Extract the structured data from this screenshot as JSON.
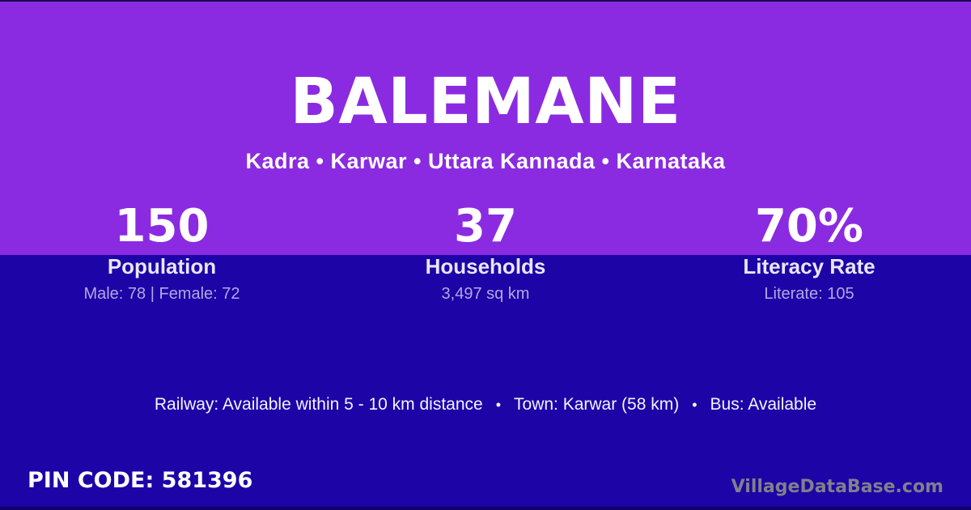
{
  "card": {
    "village_name": "BALEMANE",
    "location_path": "Kadra • Karwar • Uttara Kannada • Karnataka"
  },
  "stats": [
    {
      "value": "150",
      "label": "Population",
      "detail": "Male: 78 | Female: 72"
    },
    {
      "value": "37",
      "label": "Households",
      "detail": "3,497 sq km"
    },
    {
      "value": "70%",
      "label": "Literacy Rate",
      "detail": "Literate: 105"
    }
  ],
  "transport": {
    "separator": "•",
    "items": [
      "Railway: Available within 5 - 10 km distance",
      "Town: Karwar (58 km)",
      "Bus: Available"
    ]
  },
  "footer": {
    "pin_code": "PIN CODE: 581396",
    "watermark": "VillageDataBase.com"
  },
  "colors": {
    "hero_purple": "#8A2BE1",
    "body_indigo": "#1C04A7",
    "detail_lavender": "#B5A7E2",
    "watermark_gray": "#80808A",
    "text_white": "#FFFFFF"
  }
}
